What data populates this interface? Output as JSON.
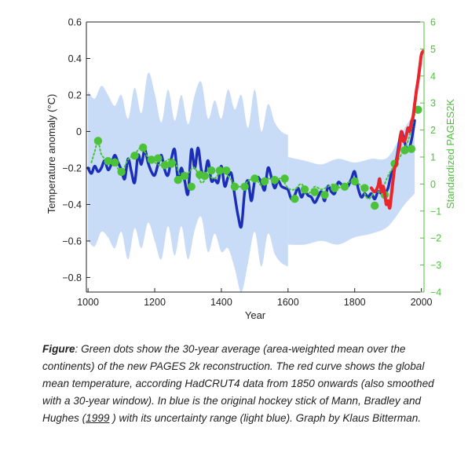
{
  "chart_data": {
    "type": "line",
    "xlabel": "Year",
    "ylabel_left": "Temperature anomaly (°C)",
    "ylabel_right": "Standardized PAGES2K",
    "xlim": [
      995,
      2008
    ],
    "xticks": [
      1000,
      1200,
      1400,
      1600,
      1800,
      2000
    ],
    "ylim_left": [
      -0.88,
      0.6
    ],
    "yticks_left": [
      0.6,
      0.4,
      0.2,
      0,
      -0.2,
      -0.4,
      -0.6,
      -0.8
    ],
    "ylim_right": [
      -4,
      6
    ],
    "yticks_right": [
      6,
      5,
      4,
      3,
      2,
      1,
      0,
      -1,
      -2,
      -3,
      -4
    ],
    "grid": false,
    "colors": {
      "mbh": "#1a2eb8",
      "uncertainty": "#c8dcf8",
      "pages2k": "#4cc23a",
      "hadcrut": "#e8262c",
      "right_axis": "#4cc23a"
    },
    "series": [
      {
        "role": "uncertainty",
        "x": [
          1000,
          1020,
          1040,
          1060,
          1080,
          1100,
          1120,
          1140,
          1160,
          1180,
          1200,
          1220,
          1240,
          1260,
          1280,
          1300,
          1320,
          1340,
          1360,
          1380,
          1400,
          1420,
          1440,
          1460,
          1480,
          1500,
          1520,
          1540,
          1560,
          1580,
          1600
        ],
        "upper": [
          0.22,
          0.18,
          0.25,
          0.2,
          0.14,
          0.2,
          0.07,
          0.24,
          0.1,
          0.32,
          0.21,
          0.05,
          0.23,
          0.06,
          0.2,
          0.04,
          0.2,
          0.27,
          0.07,
          0.17,
          0.07,
          0.23,
          0.12,
          0.2,
          0.02,
          0.23,
          0.0,
          0.15,
          0.05,
          0.0,
          -0.02
        ],
        "lower": [
          -0.6,
          -0.63,
          -0.55,
          -0.58,
          -0.64,
          -0.55,
          -0.7,
          -0.53,
          -0.64,
          -0.5,
          -0.6,
          -0.7,
          -0.52,
          -0.68,
          -0.52,
          -0.7,
          -0.54,
          -0.47,
          -0.66,
          -0.56,
          -0.66,
          -0.64,
          -0.75,
          -0.88,
          -0.72,
          -0.55,
          -0.74,
          -0.56,
          -0.67,
          -0.72,
          -0.74
        ]
      },
      {
        "role": "uncertainty_modern",
        "x": [
          1600,
          1650,
          1700,
          1750,
          1800,
          1850,
          1900,
          1950,
          1980
        ],
        "upper": [
          -0.14,
          -0.16,
          -0.18,
          -0.15,
          -0.17,
          -0.15,
          -0.14,
          0.02,
          0.1
        ],
        "lower": [
          -0.62,
          -0.62,
          -0.6,
          -0.62,
          -0.58,
          -0.56,
          -0.52,
          -0.4,
          -0.34
        ]
      },
      {
        "role": "mbh",
        "x": [
          1000,
          1010,
          1020,
          1030,
          1040,
          1050,
          1060,
          1070,
          1080,
          1090,
          1100,
          1110,
          1120,
          1130,
          1140,
          1150,
          1160,
          1170,
          1180,
          1190,
          1200,
          1210,
          1220,
          1230,
          1240,
          1250,
          1260,
          1270,
          1280,
          1290,
          1300,
          1310,
          1320,
          1330,
          1340,
          1350,
          1360,
          1370,
          1380,
          1390,
          1400,
          1410,
          1420,
          1430,
          1440,
          1450,
          1460,
          1470,
          1480,
          1490,
          1500,
          1510,
          1520,
          1530,
          1540,
          1550,
          1560,
          1570,
          1580,
          1590,
          1600,
          1610,
          1620,
          1630,
          1640,
          1650,
          1660,
          1670,
          1680,
          1690,
          1700,
          1710,
          1720,
          1730,
          1740,
          1750,
          1760,
          1770,
          1780,
          1790,
          1800,
          1810,
          1820,
          1830,
          1840,
          1850,
          1860,
          1870,
          1880,
          1890,
          1900,
          1910,
          1920,
          1930,
          1940,
          1950,
          1960,
          1970,
          1980
        ],
        "y": [
          -0.2,
          -0.23,
          -0.19,
          -0.22,
          -0.2,
          -0.16,
          -0.21,
          -0.18,
          -0.13,
          -0.17,
          -0.21,
          -0.26,
          -0.15,
          -0.22,
          -0.28,
          -0.13,
          -0.18,
          -0.1,
          -0.17,
          -0.22,
          -0.24,
          -0.18,
          -0.13,
          -0.21,
          -0.24,
          -0.15,
          -0.1,
          -0.26,
          -0.2,
          -0.27,
          -0.34,
          -0.1,
          -0.2,
          -0.09,
          -0.21,
          -0.24,
          -0.16,
          -0.27,
          -0.26,
          -0.28,
          -0.19,
          -0.3,
          -0.25,
          -0.23,
          -0.35,
          -0.46,
          -0.52,
          -0.33,
          -0.27,
          -0.38,
          -0.27,
          -0.25,
          -0.28,
          -0.32,
          -0.2,
          -0.25,
          -0.31,
          -0.27,
          -0.3,
          -0.31,
          -0.32,
          -0.37,
          -0.35,
          -0.31,
          -0.36,
          -0.33,
          -0.35,
          -0.36,
          -0.39,
          -0.36,
          -0.33,
          -0.38,
          -0.3,
          -0.33,
          -0.34,
          -0.28,
          -0.29,
          -0.31,
          -0.3,
          -0.26,
          -0.22,
          -0.31,
          -0.36,
          -0.34,
          -0.36,
          -0.34,
          -0.37,
          -0.33,
          -0.34,
          -0.34,
          -0.31,
          -0.23,
          -0.2,
          -0.1,
          0.0,
          -0.06,
          -0.1,
          -0.05,
          0.06
        ]
      },
      {
        "role": "pages2k_dotted",
        "x": [
          1010,
          1020,
          1030,
          1040,
          1060,
          1080,
          1100,
          1120,
          1140,
          1160,
          1180,
          1200,
          1220,
          1240,
          1260,
          1280,
          1300,
          1320,
          1340,
          1360,
          1380,
          1400,
          1420,
          1440,
          1460,
          1480,
          1500,
          1520,
          1540,
          1560,
          1580,
          1600,
          1620,
          1640,
          1660,
          1680,
          1700,
          1720,
          1740,
          1760,
          1780,
          1800,
          1820,
          1840,
          1860,
          1880,
          1900,
          1920,
          1940,
          1960,
          1980
        ],
        "y": [
          0.8,
          1.2,
          1.6,
          1.1,
          0.85,
          0.75,
          0.45,
          0.9,
          1.1,
          1.35,
          1.0,
          0.8,
          0.7,
          0.9,
          0.85,
          0.2,
          0.4,
          0.6,
          0.05,
          0.3,
          0.2,
          0.5,
          0.3,
          0.0,
          -0.1,
          0.1,
          0.25,
          -0.05,
          0.2,
          0.1,
          0.2,
          -0.15,
          -0.2,
          0.0,
          -0.35,
          -0.1,
          -0.2,
          -0.1,
          0.0,
          -0.15,
          0.05,
          0.1,
          -0.1,
          -0.55,
          -0.3,
          -0.25,
          0.3,
          0.7,
          1.1,
          1.6,
          2.6
        ]
      }
    ],
    "pages2k_points_right_axis": {
      "x": [
        1030,
        1060,
        1080,
        1100,
        1140,
        1165,
        1190,
        1210,
        1230,
        1250,
        1270,
        1290,
        1310,
        1335,
        1350,
        1370,
        1395,
        1415,
        1440,
        1470,
        1500,
        1530,
        1560,
        1590,
        1620,
        1650,
        1680,
        1710,
        1740,
        1770,
        1800,
        1830,
        1860,
        1890,
        1920,
        1950,
        1970,
        1990
      ],
      "y": [
        1.6,
        0.85,
        0.8,
        0.45,
        1.05,
        1.35,
        0.9,
        0.95,
        0.7,
        0.75,
        0.15,
        0.3,
        -0.1,
        0.35,
        0.3,
        0.5,
        0.5,
        0.5,
        -0.1,
        -0.1,
        0.2,
        0.1,
        0.15,
        0.2,
        -0.55,
        -0.2,
        -0.3,
        -0.4,
        -0.15,
        -0.1,
        0.1,
        -0.15,
        -0.8,
        -0.4,
        0.75,
        1.25,
        1.3,
        2.75
      ]
    },
    "hadcrut_points": {
      "x": [
        1850,
        1860,
        1870,
        1875,
        1880,
        1885,
        1890,
        1895,
        1900,
        1905,
        1910,
        1915,
        1920,
        1925,
        1930,
        1935,
        1940,
        1945,
        1950,
        1955,
        1960,
        1965,
        1970,
        1975,
        1980,
        1985,
        1990,
        1995,
        2000,
        2005
      ],
      "y": [
        -0.31,
        -0.33,
        -0.3,
        -0.26,
        -0.33,
        -0.3,
        -0.34,
        -0.4,
        -0.38,
        -0.42,
        -0.35,
        -0.27,
        -0.2,
        -0.18,
        -0.12,
        -0.08,
        0.0,
        -0.05,
        -0.05,
        -0.02,
        0.02,
        0.0,
        0.05,
        0.08,
        0.15,
        0.22,
        0.28,
        0.35,
        0.42,
        0.44
      ]
    }
  },
  "caption": {
    "label": "Figure",
    "text_before_link": ": Green dots show the 30-year average (area-weighted mean over the continents) of the new PAGES 2k reconstruction. The red curve shows the global mean temperature, according HadCRUT4 data from 1850 onwards (also smoothed with a 30-year window). In blue is the original hockey stick of Mann, Bradley and Hughes (",
    "link_text": "1999",
    "text_after_link": " ) with its uncertainty range (light blue). Graph by Klaus Bitterman."
  }
}
